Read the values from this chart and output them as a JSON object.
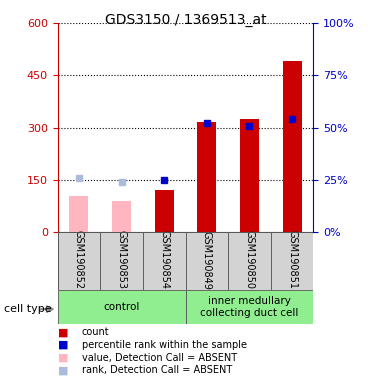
{
  "title": "GDS3150 / 1369513_at",
  "samples": [
    "GSM190852",
    "GSM190853",
    "GSM190854",
    "GSM190849",
    "GSM190850",
    "GSM190851"
  ],
  "group_labels": [
    "control",
    "inner medullary\ncollecting duct cell"
  ],
  "group_color": "#90ee90",
  "group_ranges": [
    [
      0,
      2
    ],
    [
      3,
      5
    ]
  ],
  "count_values": [
    null,
    null,
    120,
    315,
    325,
    490
  ],
  "count_absent_values": [
    105,
    90,
    null,
    null,
    null,
    null
  ],
  "percentile_values": [
    null,
    null,
    25,
    52,
    51,
    54
  ],
  "percentile_absent_values": [
    26,
    24,
    null,
    null,
    null,
    null
  ],
  "left_yaxis": {
    "min": 0,
    "max": 600,
    "ticks": [
      0,
      150,
      300,
      450,
      600
    ],
    "color": "#cc0000"
  },
  "right_yaxis": {
    "min": 0,
    "max": 100,
    "ticks": [
      0,
      25,
      50,
      75,
      100
    ],
    "color": "#0000cc"
  },
  "count_color": "#cc0000",
  "count_absent_color": "#ffb6c1",
  "percentile_color": "#0000cc",
  "percentile_absent_color": "#aabbdd",
  "sample_bg_color": "#d3d3d3",
  "legend_items": [
    {
      "label": "count",
      "color": "#cc0000"
    },
    {
      "label": "percentile rank within the sample",
      "color": "#0000cc"
    },
    {
      "label": "value, Detection Call = ABSENT",
      "color": "#ffb6c1"
    },
    {
      "label": "rank, Detection Call = ABSENT",
      "color": "#aabbdd"
    }
  ],
  "cell_type_label": "cell type"
}
